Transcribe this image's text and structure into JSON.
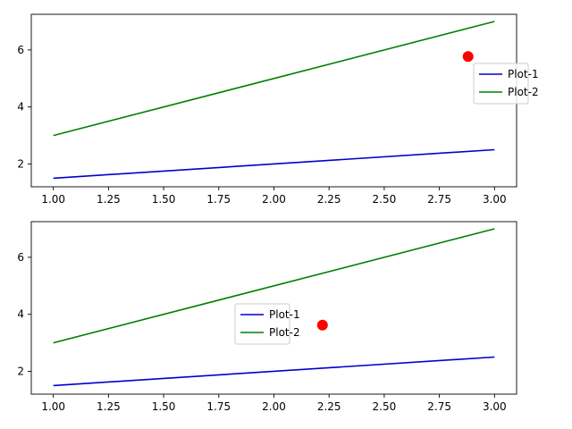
{
  "chart_data": [
    {
      "type": "line",
      "x": [
        1,
        3
      ],
      "xlim": [
        0.9,
        3.1
      ],
      "ylim": [
        1.2,
        7.25
      ],
      "xticks": [
        "1.00",
        "1.25",
        "1.50",
        "1.75",
        "2.00",
        "2.25",
        "2.50",
        "2.75",
        "3.00"
      ],
      "yticks": [
        "2",
        "4",
        "6"
      ],
      "series": [
        {
          "name": "Plot-1",
          "color": "#0000cc",
          "values": [
            1.5,
            2.5
          ]
        },
        {
          "name": "Plot-2",
          "color": "#008000",
          "values": [
            3,
            7
          ]
        }
      ],
      "marker": {
        "x": 2.88,
        "y": 5.77,
        "color": "#ff0000"
      },
      "legend": "center-right, outside axes",
      "grid": false
    },
    {
      "type": "line",
      "x": [
        1,
        3
      ],
      "xlim": [
        0.9,
        3.1
      ],
      "ylim": [
        1.2,
        7.25
      ],
      "xticks": [
        "1.00",
        "1.25",
        "1.50",
        "1.75",
        "2.00",
        "2.25",
        "2.50",
        "2.75",
        "3.00"
      ],
      "yticks": [
        "2",
        "4",
        "6"
      ],
      "series": [
        {
          "name": "Plot-1",
          "color": "#0000cc",
          "values": [
            1.5,
            2.5
          ]
        },
        {
          "name": "Plot-2",
          "color": "#008000",
          "values": [
            3,
            7
          ]
        }
      ],
      "marker": {
        "x": 2.22,
        "y": 3.62,
        "color": "#ff0000"
      },
      "legend": "center",
      "grid": false
    }
  ]
}
